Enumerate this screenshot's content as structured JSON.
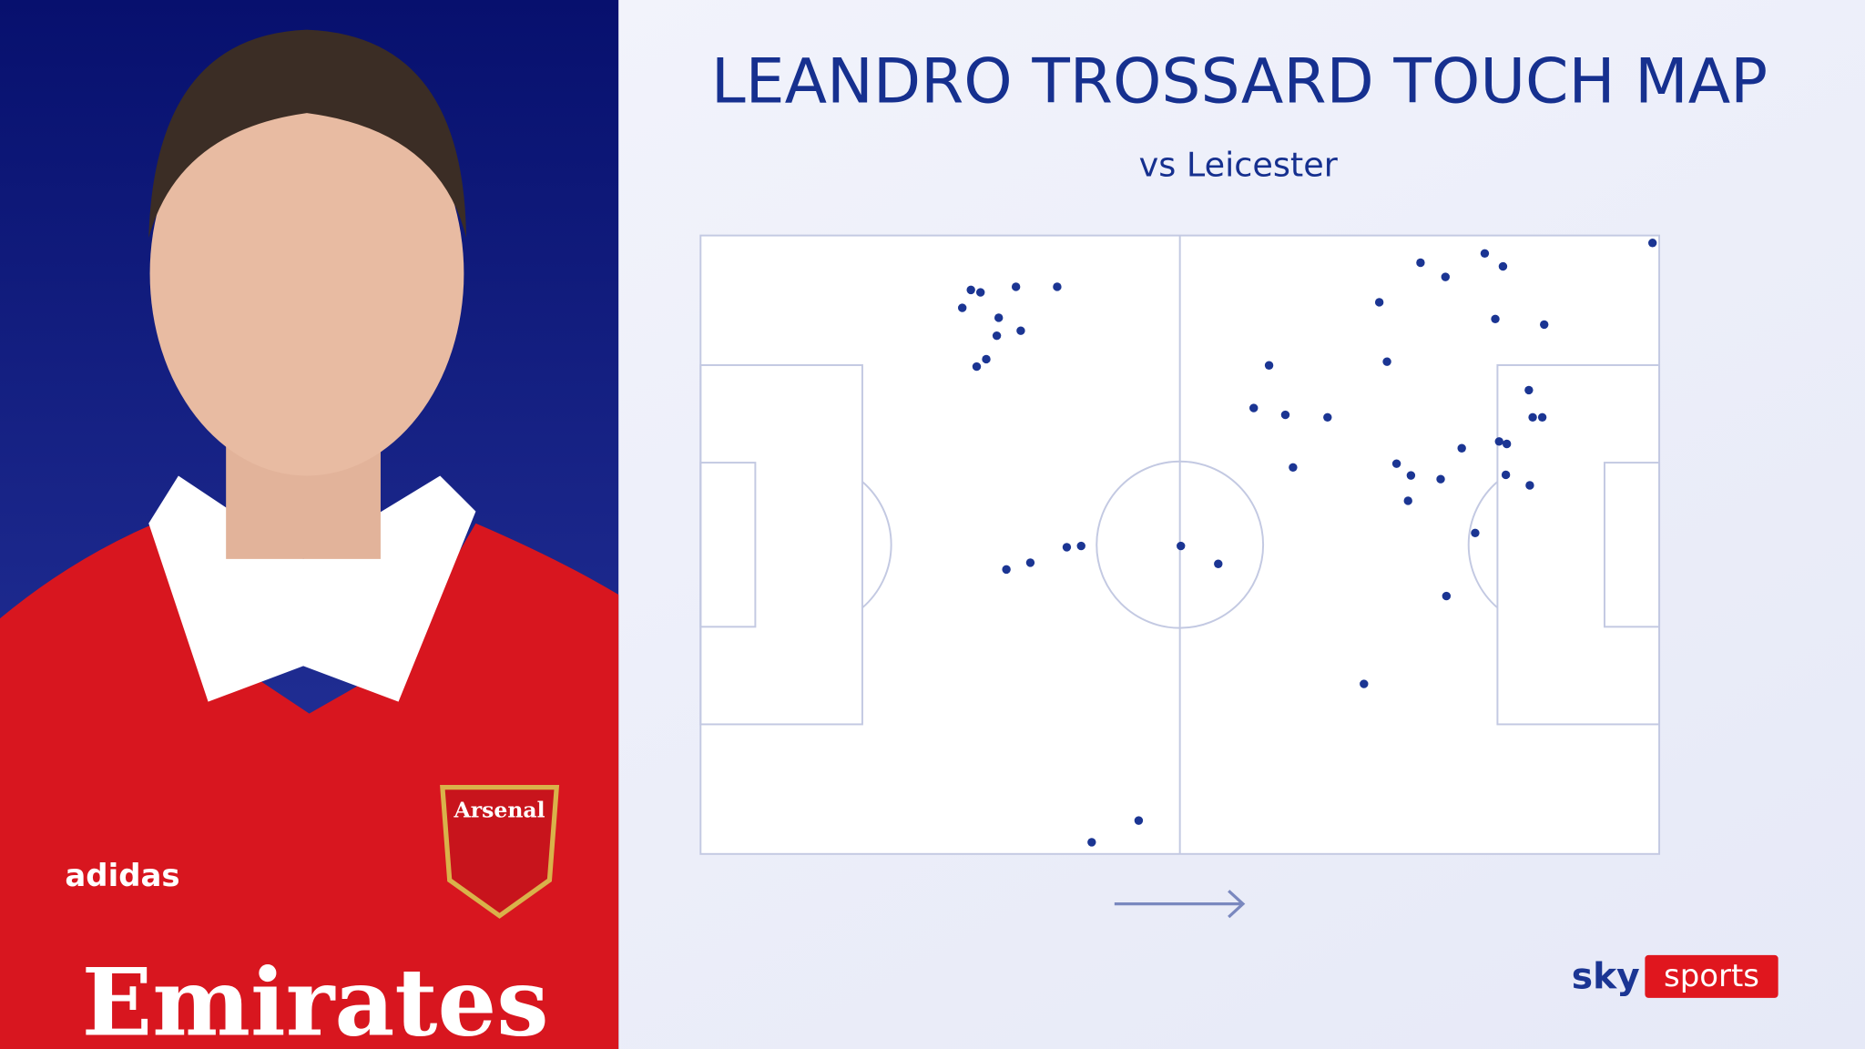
{
  "chart_data": {
    "type": "scatter",
    "title": "LEANDRO TROSSARD TOUCH MAP",
    "subtitle": "vs Leicester",
    "color": "#1b3593",
    "xlim": [
      0,
      100
    ],
    "ylim": [
      0,
      100
    ],
    "x": [
      99.3,
      75.1,
      77.7,
      81.8,
      83.7,
      70.8,
      82.9,
      88.0,
      71.6,
      59.3,
      57.7,
      61.0,
      65.4,
      86.4,
      86.8,
      87.8,
      83.3,
      84.1,
      79.4,
      61.8,
      72.6,
      74.1,
      77.2,
      84.0,
      86.5,
      73.8,
      80.8,
      77.8,
      69.2,
      50.1,
      54.0,
      31.9,
      34.4,
      38.2,
      39.7,
      45.7,
      40.8,
      28.2,
      29.2,
      32.9,
      37.2,
      27.3,
      31.1,
      30.9,
      33.4,
      29.8,
      28.8
    ],
    "values": [
      98.8,
      95.6,
      93.3,
      97.1,
      95.0,
      89.2,
      86.5,
      85.6,
      79.6,
      79.0,
      72.1,
      71.0,
      70.6,
      75.0,
      70.6,
      70.6,
      66.7,
      66.3,
      65.6,
      62.5,
      63.1,
      61.2,
      60.6,
      61.3,
      59.6,
      57.1,
      51.9,
      41.7,
      27.5,
      49.8,
      46.9,
      46.0,
      47.1,
      49.6,
      49.8,
      5.4,
      1.9,
      91.2,
      90.8,
      91.7,
      91.7,
      88.3,
      86.7,
      83.8,
      84.6,
      80.0,
      78.8
    ]
  },
  "player_image": {
    "crest": "Arsenal",
    "maker": "adidas",
    "sponsor": "Emirates"
  },
  "logo": {
    "sky": "sky",
    "sports": "sports"
  }
}
